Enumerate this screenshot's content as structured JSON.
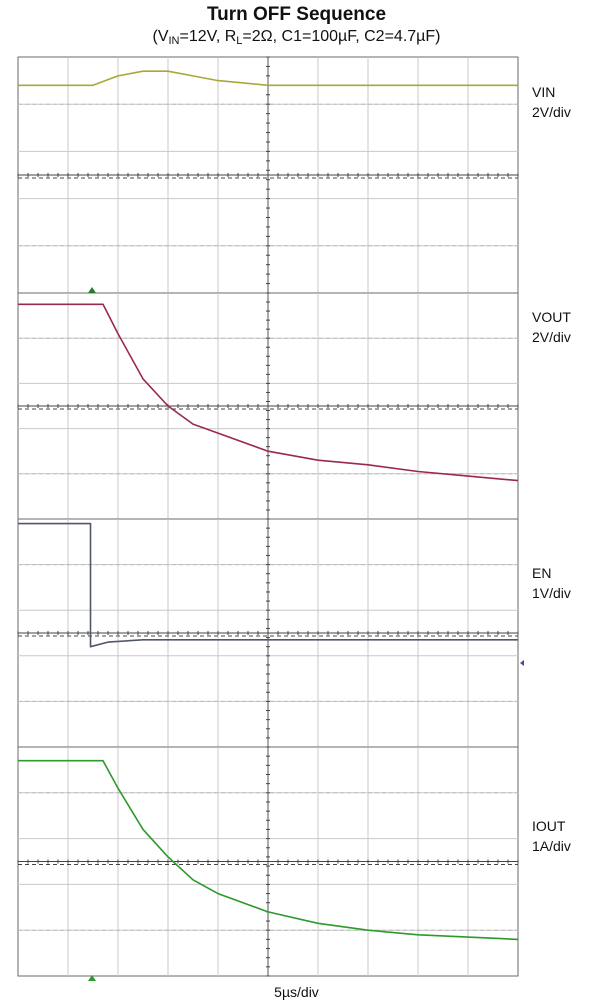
{
  "chart_data": {
    "type": "line",
    "title": "Turn OFF Sequence",
    "subtitle": {
      "vin_label": "V",
      "vin_sub": "IN",
      "vin_value": "=12V, R",
      "rl_sub": "L",
      "rest": "=2Ω, C1=100µF, C2=4.7µF)",
      "open": "("
    },
    "xlabel": "5µs/div",
    "x_range_div": [
      0,
      10
    ],
    "grid": true,
    "channels": [
      {
        "name": "VIN",
        "scale": "2V/div",
        "color": "#a8a838",
        "points": [
          [
            0,
            0.6
          ],
          [
            1,
            0.6
          ],
          [
            1.5,
            0.6
          ],
          [
            2,
            0.4
          ],
          [
            2.5,
            0.3
          ],
          [
            3,
            0.3
          ],
          [
            3.5,
            0.4
          ],
          [
            4,
            0.5
          ],
          [
            5,
            0.6
          ],
          [
            6,
            0.6
          ],
          [
            10,
            0.6
          ]
        ]
      },
      {
        "name": "VOUT",
        "scale": "2V/div",
        "color": "#9a2a4a",
        "points": [
          [
            0,
            0.25
          ],
          [
            1.7,
            0.25
          ],
          [
            2,
            0.9
          ],
          [
            2.5,
            1.9
          ],
          [
            3,
            2.5
          ],
          [
            3.5,
            2.9
          ],
          [
            4,
            3.1
          ],
          [
            5,
            3.5
          ],
          [
            6,
            3.7
          ],
          [
            7,
            3.8
          ],
          [
            8,
            3.95
          ],
          [
            9,
            4.05
          ],
          [
            10,
            4.15
          ]
        ]
      },
      {
        "name": "EN",
        "scale": "1V/div",
        "color": "#505868",
        "points": [
          [
            0,
            0.1
          ],
          [
            1.45,
            0.1
          ],
          [
            1.45,
            2.8
          ],
          [
            1.8,
            2.7
          ],
          [
            2.5,
            2.65
          ],
          [
            4,
            2.65
          ],
          [
            10,
            2.65
          ]
        ]
      },
      {
        "name": "IOUT",
        "scale": "1A/div",
        "color": "#2c9a2c",
        "points": [
          [
            0,
            0.3
          ],
          [
            1.7,
            0.3
          ],
          [
            2,
            0.9
          ],
          [
            2.5,
            1.8
          ],
          [
            3,
            2.4
          ],
          [
            3.5,
            2.9
          ],
          [
            4,
            3.2
          ],
          [
            5,
            3.6
          ],
          [
            6,
            3.85
          ],
          [
            7,
            4.0
          ],
          [
            8,
            4.1
          ],
          [
            9,
            4.15
          ],
          [
            10,
            4.2
          ]
        ]
      }
    ]
  }
}
